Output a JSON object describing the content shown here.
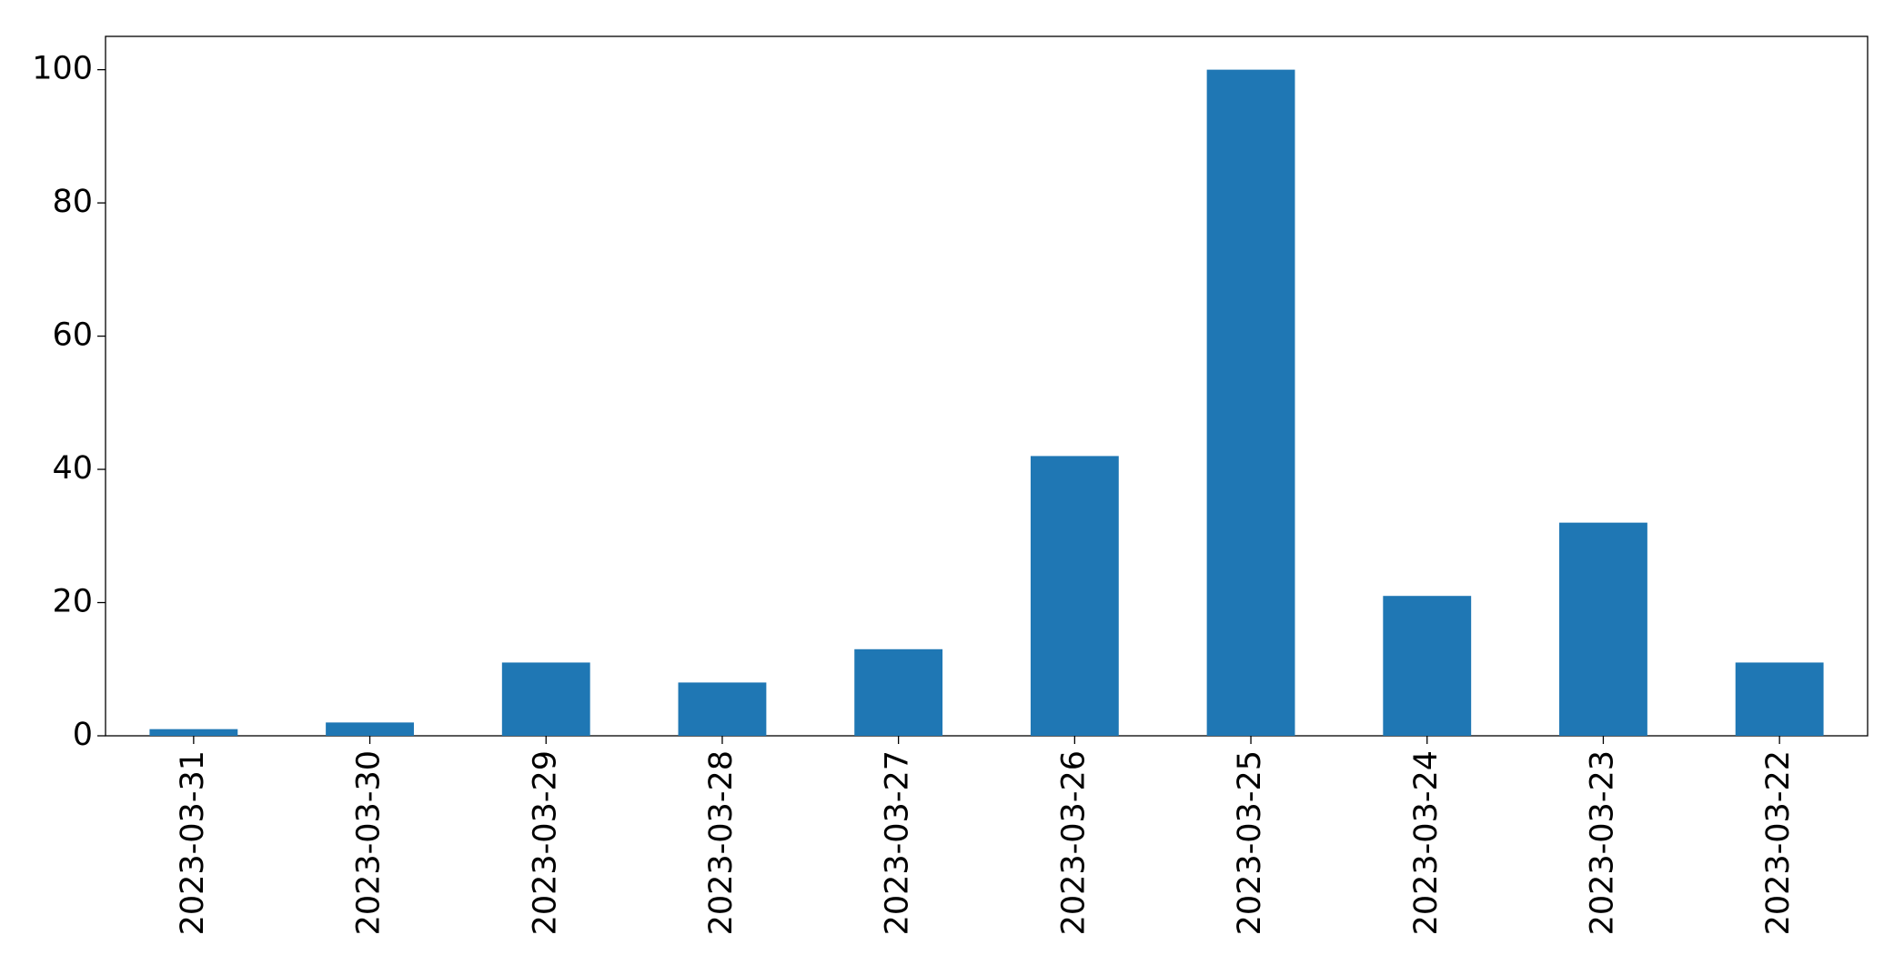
{
  "chart_data": {
    "type": "bar",
    "categories": [
      "2023-03-31",
      "2023-03-30",
      "2023-03-29",
      "2023-03-28",
      "2023-03-27",
      "2023-03-26",
      "2023-03-25",
      "2023-03-24",
      "2023-03-23",
      "2023-03-22"
    ],
    "values": [
      1,
      2,
      11,
      8,
      13,
      42,
      100,
      21,
      32,
      11
    ],
    "color": "#1f77b4",
    "ylim": [
      0,
      105
    ],
    "yticks": [
      0,
      20,
      40,
      60,
      80,
      100
    ],
    "grid": false
  }
}
